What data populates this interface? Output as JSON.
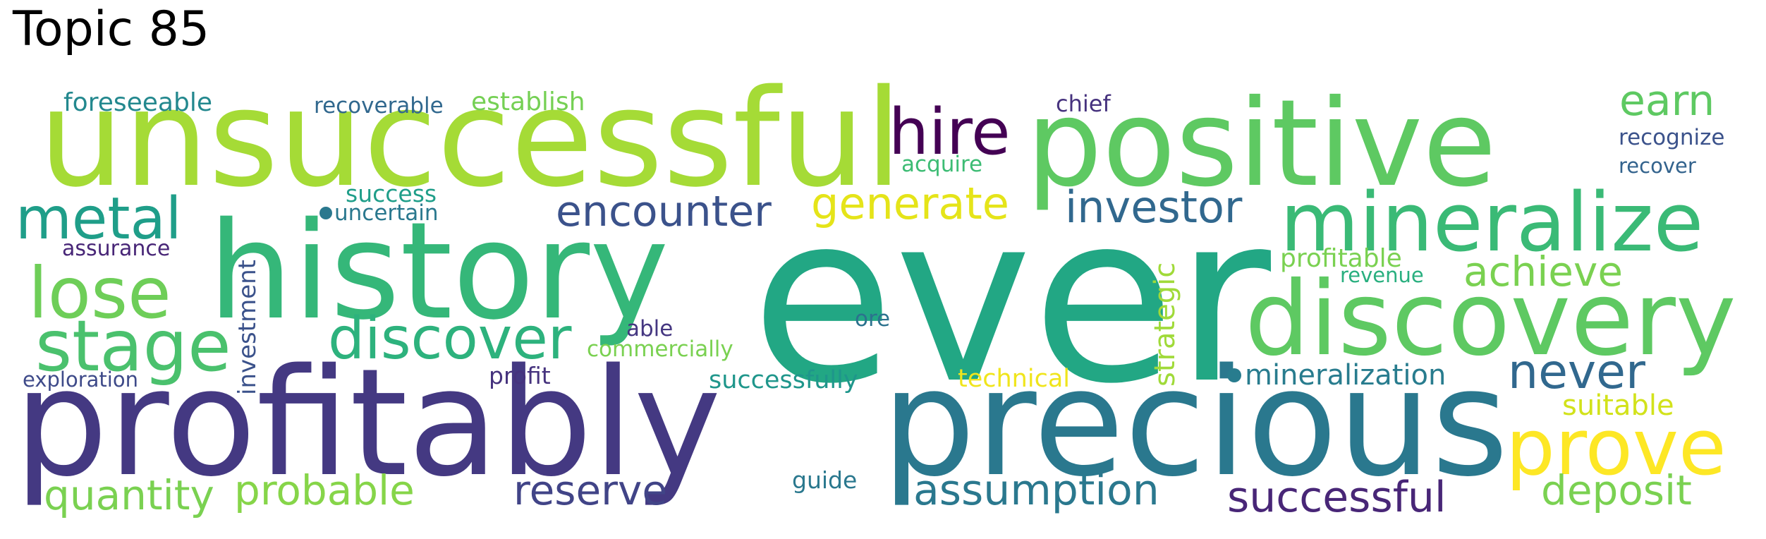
{
  "title": "Topic 85",
  "words": [
    {
      "text": "ever",
      "color": "#22a784"
    },
    {
      "text": "profitably",
      "color": "#443982"
    },
    {
      "text": "precious",
      "color": "#2a788e"
    },
    {
      "text": "unsuccessful",
      "color": "#a5db36"
    },
    {
      "text": "history",
      "color": "#35b779"
    },
    {
      "text": "positive",
      "color": "#5ec962"
    },
    {
      "text": "discovery",
      "color": "#5ec962"
    },
    {
      "text": "mineralize",
      "color": "#3aba76"
    },
    {
      "text": "prove",
      "color": "#fde725"
    },
    {
      "text": "hire",
      "color": "#440154"
    },
    {
      "text": "metal",
      "color": "#1f9e89"
    },
    {
      "text": "lose",
      "color": "#6ece58"
    },
    {
      "text": "stage",
      "color": "#4ac16d"
    },
    {
      "text": "discover",
      "color": "#2db27d"
    },
    {
      "text": "encounter",
      "color": "#3b528b"
    },
    {
      "text": "generate",
      "color": "#e5e419"
    },
    {
      "text": "investor",
      "color": "#31688e"
    },
    {
      "text": "earn",
      "color": "#5ec962"
    },
    {
      "text": "achieve",
      "color": "#7ad151"
    },
    {
      "text": "never",
      "color": "#31688e"
    },
    {
      "text": "successful",
      "color": "#482677"
    },
    {
      "text": "deposit",
      "color": "#7ad151"
    },
    {
      "text": "assumption",
      "color": "#2a788e"
    },
    {
      "text": "reserve",
      "color": "#414487"
    },
    {
      "text": "probable",
      "color": "#86d549"
    },
    {
      "text": "quantity",
      "color": "#7ad151"
    },
    {
      "text": "mineralization",
      "color": "#287c8e"
    },
    {
      "text": "suitable",
      "color": "#d2e21b"
    },
    {
      "text": "profitable",
      "color": "#7ad151"
    },
    {
      "text": "revenue",
      "color": "#29af7f"
    },
    {
      "text": "recognize",
      "color": "#3b528b"
    },
    {
      "text": "recover",
      "color": "#33638d"
    },
    {
      "text": "strategic",
      "color": "#a0da39"
    },
    {
      "text": "foreseeable",
      "color": "#23888e"
    },
    {
      "text": "recoverable",
      "color": "#31688e"
    },
    {
      "text": "establish",
      "color": "#75d054"
    },
    {
      "text": "chief",
      "color": "#46327e"
    },
    {
      "text": "acquire",
      "color": "#3dbc74"
    },
    {
      "text": "success",
      "color": "#1f9e89"
    },
    {
      "text": "uncertain",
      "color": "#2a788e"
    },
    {
      "text": "assurance",
      "color": "#482677"
    },
    {
      "text": "investment",
      "color": "#3b528b"
    },
    {
      "text": "exploration",
      "color": "#3e4a89"
    },
    {
      "text": "profit",
      "color": "#46337e"
    },
    {
      "text": "able",
      "color": "#453781"
    },
    {
      "text": "commercially",
      "color": "#7ad151"
    },
    {
      "text": "ore",
      "color": "#2c728e"
    },
    {
      "text": "successfully",
      "color": "#1f968b"
    },
    {
      "text": "technical",
      "color": "#f0e51c"
    },
    {
      "text": "guide",
      "color": "#2a788e"
    }
  ]
}
